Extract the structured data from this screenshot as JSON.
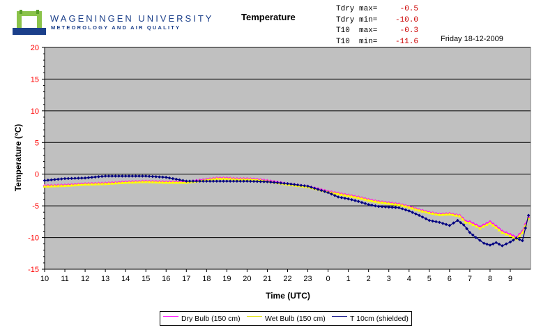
{
  "header": {
    "university": "WAGENINGEN UNIVERSITY",
    "department": "METEOROLOGY AND AIR QUALITY",
    "title": "Temperature",
    "date": "Friday 18-12-2009",
    "stats": [
      {
        "label": "Tdry max=",
        "value": "-0.5"
      },
      {
        "label": "Tdry min=",
        "value": "-10.0"
      },
      {
        "label": "T10  max=",
        "value": "-0.3"
      },
      {
        "label": "T10  min=",
        "value": "-11.6"
      }
    ]
  },
  "colors": {
    "plot_bg": "#c0c0c0",
    "dry_bulb": "#ff00ff",
    "wet_bulb": "#ffff00",
    "t10": "#000080",
    "axis_red": "#ff0000",
    "stats_red": "#cc0000"
  },
  "chart_data": {
    "type": "line",
    "title": "Temperature",
    "xlabel": "Time (UTC)",
    "ylabel": "Temperature (°C)",
    "ylim": [
      -15,
      20
    ],
    "yticks": [
      20,
      15,
      10,
      5,
      0,
      -5,
      -10,
      -15
    ],
    "xticks": [
      "10",
      "11",
      "12",
      "13",
      "14",
      "15",
      "16",
      "17",
      "18",
      "19",
      "20",
      "21",
      "22",
      "23",
      "0",
      "1",
      "2",
      "3",
      "4",
      "5",
      "6",
      "7",
      "8",
      "9"
    ],
    "grid": true,
    "legend": "bottom",
    "series": [
      {
        "name": "Dry Bulb (150 cm)",
        "x": [
          10,
          11,
          12,
          13,
          14,
          15,
          16,
          17,
          18,
          18.5,
          19,
          19.5,
          20,
          20.5,
          21,
          22,
          23,
          0,
          0.5,
          1,
          1.5,
          2,
          2.5,
          3,
          3.5,
          4,
          4.5,
          5,
          5.5,
          6,
          6.5,
          6.8,
          7,
          7.5,
          8,
          8.3,
          8.6,
          9,
          9.3,
          9.6,
          9.9
        ],
        "y": [
          -1.8,
          -1.7,
          -1.5,
          -1.4,
          -1.2,
          -1.1,
          -1.2,
          -1.2,
          -0.8,
          -0.6,
          -0.6,
          -0.7,
          -0.7,
          -0.8,
          -1.0,
          -1.5,
          -1.9,
          -2.7,
          -3.0,
          -3.3,
          -3.6,
          -4.0,
          -4.3,
          -4.5,
          -4.7,
          -5.1,
          -5.6,
          -6.0,
          -6.3,
          -6.2,
          -6.5,
          -7.4,
          -7.5,
          -8.3,
          -7.5,
          -8.2,
          -9.0,
          -9.5,
          -10.0,
          -9.0,
          -6.8
        ]
      },
      {
        "name": "Wet Bulb (150 cm)",
        "x": [
          10,
          11,
          12,
          13,
          14,
          15,
          16,
          17,
          18,
          18.5,
          19,
          19.5,
          20,
          20.5,
          21,
          22,
          23,
          0,
          0.5,
          1,
          1.5,
          2,
          2.5,
          3,
          3.5,
          4,
          4.5,
          5,
          5.5,
          6,
          6.5,
          6.8,
          7,
          7.5,
          8,
          8.3,
          8.6,
          9,
          9.3,
          9.6,
          9.9
        ],
        "y": [
          -1.9,
          -1.8,
          -1.6,
          -1.5,
          -1.3,
          -1.2,
          -1.3,
          -1.3,
          -0.9,
          -0.7,
          -0.7,
          -0.8,
          -0.8,
          -0.9,
          -1.1,
          -1.6,
          -2.0,
          -2.8,
          -3.1,
          -3.4,
          -3.7,
          -4.1,
          -4.4,
          -4.6,
          -4.8,
          -5.2,
          -5.7,
          -6.1,
          -6.4,
          -6.3,
          -6.6,
          -7.6,
          -7.7,
          -8.5,
          -7.7,
          -8.4,
          -9.2,
          -9.7,
          -10.2,
          -9.2,
          -7.0
        ]
      },
      {
        "name": "T 10cm (shielded)",
        "x": [
          10,
          11,
          12,
          13,
          14,
          15,
          16,
          17,
          18,
          19,
          20,
          21,
          22,
          23,
          0,
          0.5,
          1,
          1.5,
          2,
          2.5,
          3,
          3.5,
          4,
          4.5,
          5,
          5.5,
          6,
          6.4,
          6.7,
          7,
          7.3,
          7.7,
          8,
          8.3,
          8.6,
          9,
          9.3,
          9.6,
          9.9
        ],
        "y": [
          -1.0,
          -0.7,
          -0.6,
          -0.3,
          -0.3,
          -0.3,
          -0.5,
          -1.1,
          -1.1,
          -1.1,
          -1.1,
          -1.2,
          -1.5,
          -1.9,
          -2.9,
          -3.6,
          -3.9,
          -4.3,
          -4.8,
          -5.1,
          -5.2,
          -5.3,
          -5.8,
          -6.5,
          -7.3,
          -7.6,
          -8.1,
          -7.3,
          -8.0,
          -9.2,
          -10.0,
          -10.9,
          -11.2,
          -10.8,
          -11.3,
          -10.7,
          -10.1,
          -10.5,
          -6.5
        ]
      }
    ]
  }
}
